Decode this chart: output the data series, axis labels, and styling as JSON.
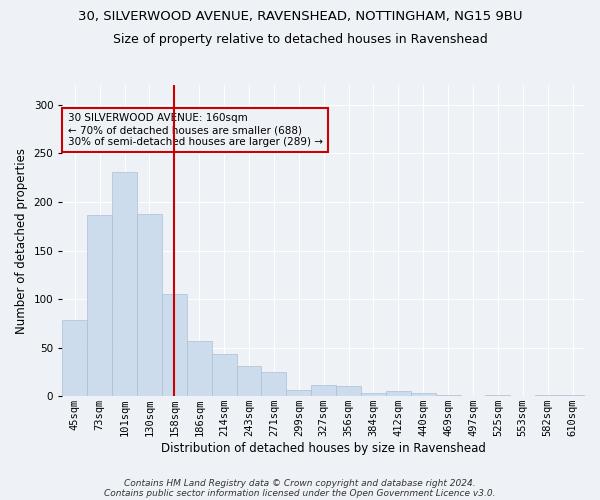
{
  "title_line1": "30, SILVERWOOD AVENUE, RAVENSHEAD, NOTTINGHAM, NG15 9BU",
  "title_line2": "Size of property relative to detached houses in Ravenshead",
  "xlabel": "Distribution of detached houses by size in Ravenshead",
  "ylabel": "Number of detached properties",
  "categories": [
    "45sqm",
    "73sqm",
    "101sqm",
    "130sqm",
    "158sqm",
    "186sqm",
    "214sqm",
    "243sqm",
    "271sqm",
    "299sqm",
    "327sqm",
    "356sqm",
    "384sqm",
    "412sqm",
    "440sqm",
    "469sqm",
    "497sqm",
    "525sqm",
    "553sqm",
    "582sqm",
    "610sqm"
  ],
  "values": [
    78,
    187,
    231,
    188,
    105,
    57,
    43,
    31,
    25,
    6,
    12,
    10,
    3,
    5,
    3,
    1,
    0,
    1,
    0,
    1,
    1
  ],
  "bar_color": "#ccdcec",
  "bar_edge_color": "#aac0d4",
  "vline_x": 4.0,
  "vline_color": "#cc0000",
  "annotation_text": "30 SILVERWOOD AVENUE: 160sqm\n← 70% of detached houses are smaller (688)\n30% of semi-detached houses are larger (289) →",
  "annotation_box_color": "#cc0000",
  "annotation_text_color": "#000000",
  "footer_line1": "Contains HM Land Registry data © Crown copyright and database right 2024.",
  "footer_line2": "Contains public sector information licensed under the Open Government Licence v3.0.",
  "ylim": [
    0,
    320
  ],
  "background_color": "#eef2f7",
  "grid_color": "#ffffff",
  "title_fontsize": 9.5,
  "subtitle_fontsize": 9,
  "axis_label_fontsize": 8.5,
  "tick_fontsize": 7.5
}
